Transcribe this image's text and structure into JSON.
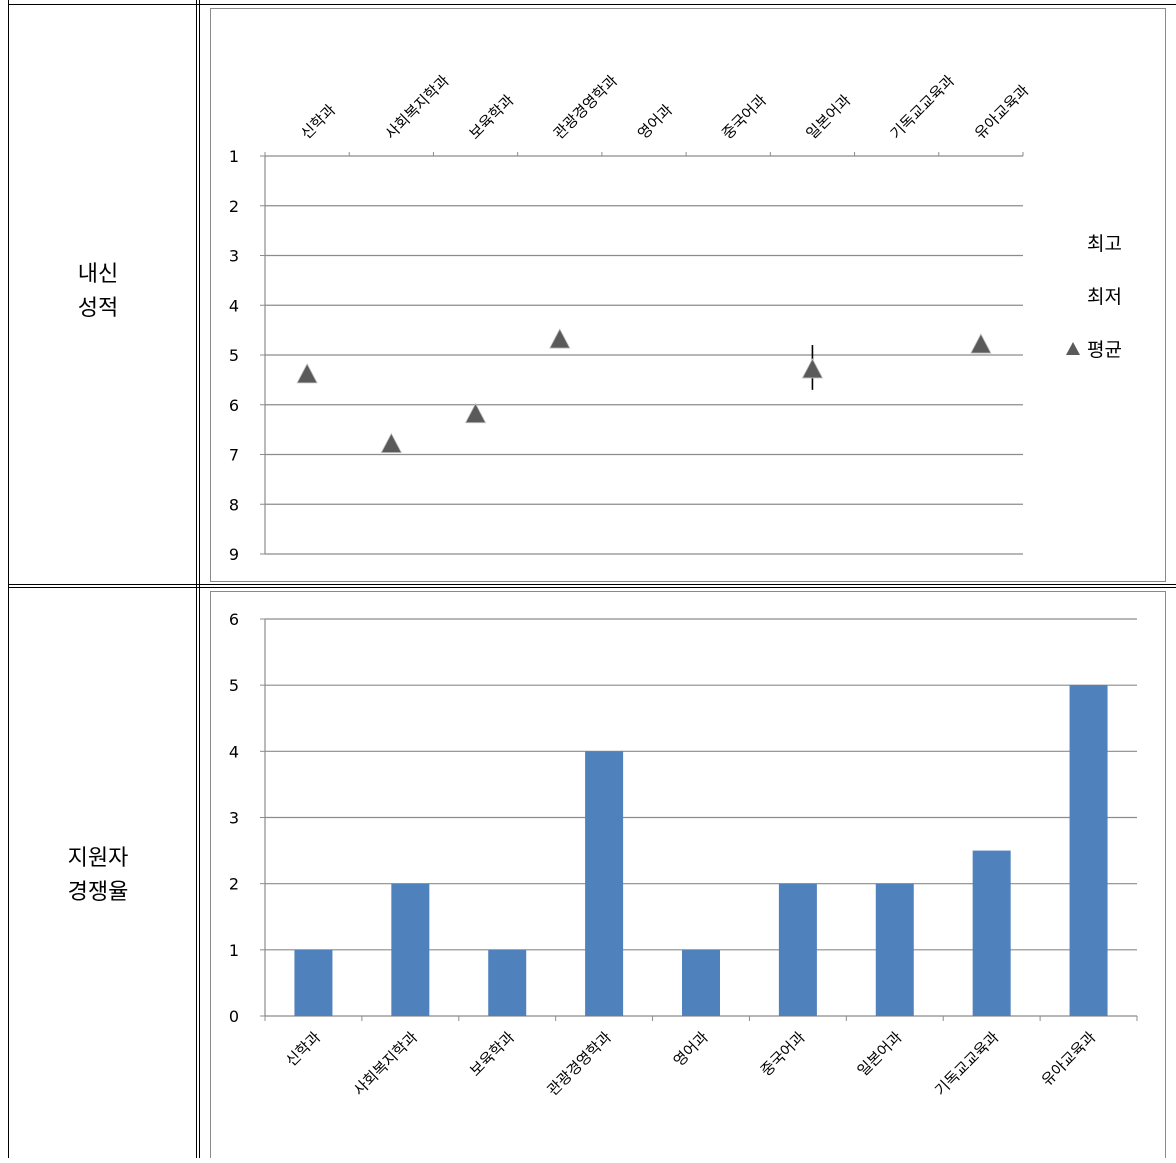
{
  "table": {
    "rows": [
      {
        "label_lines": [
          "내신",
          "성적"
        ]
      },
      {
        "label_lines": [
          "지원자",
          "경쟁율"
        ]
      }
    ]
  },
  "chart_data": [
    {
      "type": "scatter",
      "categories": [
        "신학과",
        "사회복지학과",
        "보육학과",
        "관광경영학과",
        "영어과",
        "중국어과",
        "일본어과",
        "기독교교육과",
        "유아교육과"
      ],
      "series": [
        {
          "name": "최고",
          "values": [
            null,
            null,
            null,
            null,
            null,
            null,
            4.8,
            null,
            null
          ]
        },
        {
          "name": "최저",
          "values": [
            null,
            null,
            null,
            null,
            null,
            null,
            5.7,
            null,
            null
          ]
        },
        {
          "name": "평균",
          "values": [
            5.4,
            6.8,
            6.2,
            4.7,
            null,
            null,
            5.3,
            null,
            4.8
          ]
        }
      ],
      "ylim": [
        1,
        9
      ],
      "y_reversed": true,
      "yticks": [
        1,
        2,
        3,
        4,
        5,
        6,
        7,
        8,
        9
      ],
      "x_axis_position": "top",
      "grid": true,
      "legend": {
        "position": "right",
        "entries": [
          "최고",
          "최저",
          "평균"
        ]
      },
      "colors": {
        "marker": "#5a5a5a",
        "grid": "#8c8c8c"
      }
    },
    {
      "type": "bar",
      "categories": [
        "신학과",
        "사회복지학과",
        "보육학과",
        "관광경영학과",
        "영어과",
        "중국어과",
        "일본어과",
        "기독교교육과",
        "유아교육과"
      ],
      "values": [
        1,
        2,
        1,
        4,
        1,
        2,
        2,
        2.5,
        5
      ],
      "ylim": [
        0,
        6
      ],
      "yticks": [
        0,
        1,
        2,
        3,
        4,
        5,
        6
      ],
      "grid": true,
      "colors": {
        "bar": "#4f81bd",
        "grid": "#8c8c8c"
      }
    }
  ]
}
